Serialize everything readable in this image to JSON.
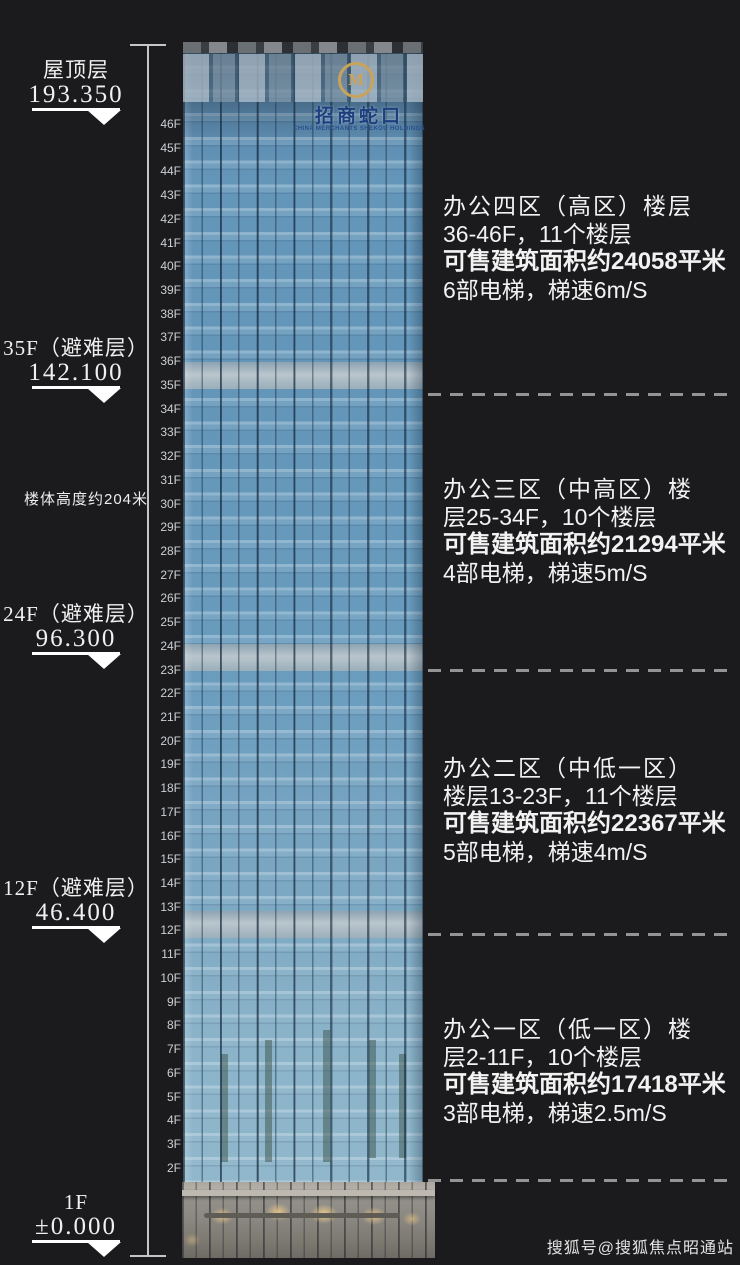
{
  "page": {
    "background_color": "#1b1b1d",
    "watermark": "搜狐号@搜狐焦点昭通站"
  },
  "appearance": {
    "facade_blue": "#6a9cbe",
    "refuge_band_gray": "#bdc7cd",
    "dash_gray": "#949494",
    "logo_gold": "#c9a35a",
    "logo_blue": "#1d3e7d",
    "lobby_beige": "#94918b",
    "text_white": "#f2f2f2"
  },
  "elevation_scale": {
    "height_note": "楼体高度约204米",
    "markers": [
      {
        "name": "roof",
        "label": "屋顶层",
        "value": "193.350"
      },
      {
        "name": "refuge-35f",
        "label": "35F（避难层）",
        "value": "142.100"
      },
      {
        "name": "refuge-24f",
        "label": "24F（避难层）",
        "value": "96.300"
      },
      {
        "name": "refuge-12f",
        "label": "12F（避难层）",
        "value": "46.400"
      },
      {
        "name": "ground-1f",
        "label": "1F",
        "value": "±0.000"
      }
    ]
  },
  "building": {
    "logo": {
      "symbol": "M",
      "text": "招商蛇口",
      "subtext": "CHINA MERCHANTS SHEKOU HOLDINGS"
    },
    "floor_labels": [
      "46F",
      "45F",
      "44F",
      "43F",
      "42F",
      "41F",
      "40F",
      "39F",
      "38F",
      "37F",
      "36F",
      "35F",
      "34F",
      "33F",
      "32F",
      "31F",
      "30F",
      "29F",
      "28F",
      "27F",
      "26F",
      "25F",
      "24F",
      "23F",
      "22F",
      "21F",
      "20F",
      "19F",
      "18F",
      "17F",
      "16F",
      "15F",
      "14F",
      "13F",
      "12F",
      "11F",
      "10F",
      "9F",
      "8F",
      "7F",
      "6F",
      "5F",
      "4F",
      "3F",
      "2F"
    ]
  },
  "zones": [
    {
      "name": "office-zone-4",
      "lines": [
        "办公四区（高区）楼层",
        "36-46F，11个楼层",
        "可售建筑面积约24058平米",
        "6部电梯，梯速6m/S"
      ]
    },
    {
      "name": "office-zone-3",
      "lines": [
        "办公三区（中高区）楼",
        "层25-34F，10个楼层",
        "可售建筑面积约21294平米",
        "4部电梯，梯速5m/S"
      ]
    },
    {
      "name": "office-zone-2",
      "lines": [
        "办公二区（中低一区）",
        "楼层13-23F，11个楼层",
        "可售建筑面积约22367平米",
        "5部电梯，梯速4m/S"
      ]
    },
    {
      "name": "office-zone-1",
      "lines": [
        "办公一区（低一区）楼",
        "层2-11F，10个楼层",
        "可售建筑面积约17418平米",
        "3部电梯，梯速2.5m/S"
      ]
    }
  ]
}
